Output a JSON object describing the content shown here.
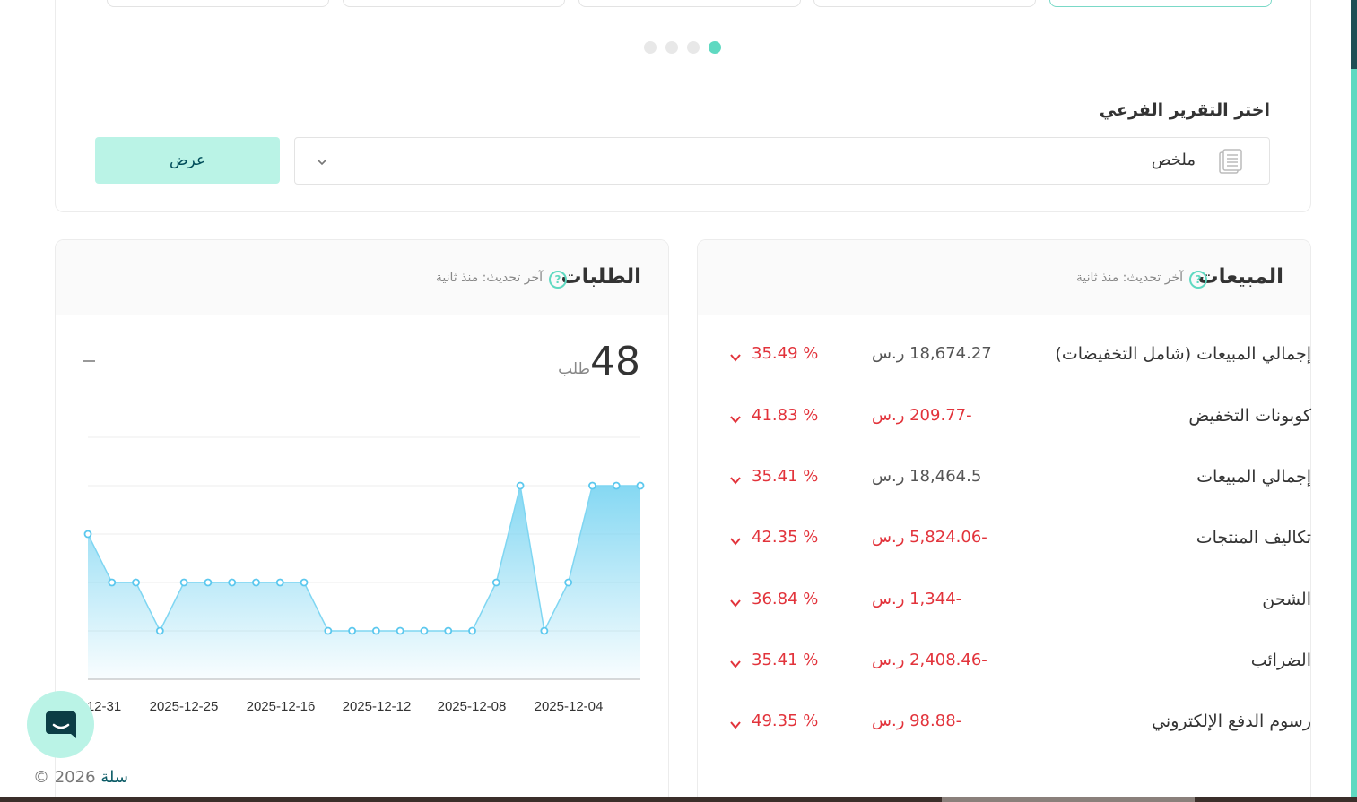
{
  "selector": {
    "title": "اختر التقرير الفرعي",
    "selected": "ملخص",
    "show_button": "عرض",
    "carousel_pages": 4,
    "active_page": 4
  },
  "orders": {
    "title": "الطلبات",
    "updated": "آخر تحديث: منذ ثانية",
    "count": "48",
    "unit": "طلب",
    "help_icon": "?"
  },
  "sales": {
    "title": "المبيعات",
    "updated": "آخر تحديث: منذ ثانية",
    "help_icon": "?",
    "rows": [
      {
        "label": "إجمالي المبيعات (شامل التخفيضات)",
        "value": "18,674.27 ر.س",
        "change": "35.49 %",
        "negative": false
      },
      {
        "label": "كوبونات التخفيض",
        "value": "-209.77 ر.س",
        "change": "41.83 %",
        "negative": true
      },
      {
        "label": "إجمالي المبيعات",
        "value": "18,464.5 ر.س",
        "change": "35.41 %",
        "negative": false
      },
      {
        "label": "تكاليف المنتجات",
        "value": "-5,824.06 ر.س",
        "change": "42.35 %",
        "negative": true
      },
      {
        "label": "الشحن",
        "value": "-1,344 ر.س",
        "change": "36.84 %",
        "negative": true
      },
      {
        "label": "الضرائب",
        "value": "-2,408.46 ر.س",
        "change": "35.41 %",
        "negative": true
      },
      {
        "label": "رسوم الدفع الإلكتروني",
        "value": "-98.88 ر.س",
        "change": "49.35 %",
        "negative": true
      }
    ]
  },
  "footer": {
    "brand": "سلة",
    "copyright": "© 2026"
  },
  "colors": {
    "accent": "#5fd9c1",
    "negative": "#e2333b",
    "chart_line": "#7fd6f2"
  },
  "chart_data": {
    "type": "area",
    "x_tick_labels": [
      "12-31",
      "2025-12-25",
      "2025-12-16",
      "2025-12-12",
      "2025-12-08",
      "2025-12-04"
    ],
    "values": [
      3,
      2,
      2,
      1,
      2,
      2,
      2,
      2,
      2,
      2,
      1,
      1,
      1,
      1,
      1,
      1,
      1,
      2,
      4,
      1,
      2,
      4,
      4,
      4
    ],
    "ylim": [
      0,
      5
    ],
    "grid": true
  }
}
